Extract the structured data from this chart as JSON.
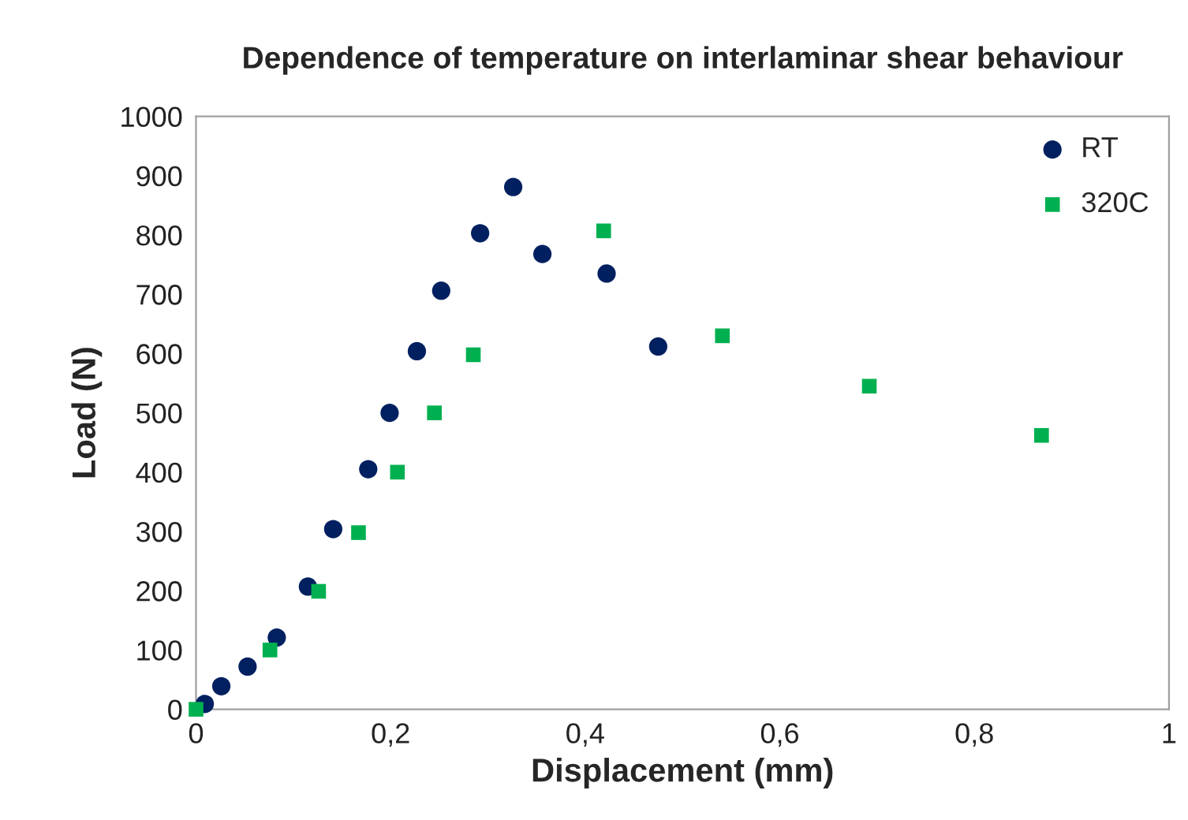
{
  "chart_data": {
    "type": "scatter",
    "title": "Dependence of temperature on interlaminar shear behaviour",
    "xlabel": "Displacement (mm)",
    "ylabel": "Load (N)",
    "series": [
      {
        "name": "RT",
        "color": "#002060",
        "marker": "circle",
        "x": [
          0.009,
          0.026,
          0.053,
          0.083,
          0.115,
          0.141,
          0.177,
          0.199,
          0.227,
          0.252,
          0.292,
          0.326,
          0.356,
          0.422,
          0.475
        ],
        "values": [
          9,
          39,
          72,
          121,
          207,
          304,
          405,
          500,
          604,
          706,
          803,
          881,
          768,
          735,
          612
        ]
      },
      {
        "name": "320C",
        "color": "#00b050",
        "marker": "square",
        "x": [
          0,
          0.076,
          0.126,
          0.167,
          0.207,
          0.245,
          0.285,
          0.419,
          0.541,
          0.692,
          0.869
        ],
        "values": [
          0,
          100,
          199,
          298,
          400,
          500,
          598,
          807,
          630,
          545,
          462
        ]
      }
    ],
    "xlim": [
      0,
      1
    ],
    "xticks": [
      0,
      {
        "value": 0.2,
        "label": "0,2"
      },
      {
        "value": 0.4,
        "label": "0,4"
      },
      {
        "value": 0.6,
        "label": "0,6"
      },
      {
        "value": 0.8,
        "label": "0,8"
      },
      1
    ],
    "ylim": [
      0,
      1000
    ],
    "yticks": [
      0,
      100,
      200,
      300,
      400,
      500,
      600,
      700,
      800,
      900,
      1000
    ],
    "grid": false,
    "legend": "top right"
  }
}
